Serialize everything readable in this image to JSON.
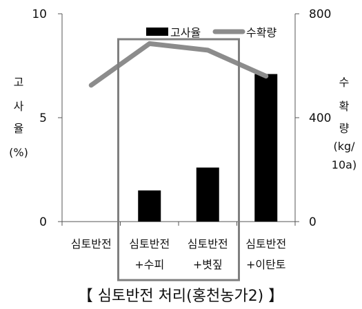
{
  "chart_data": {
    "type": "bar",
    "categories": [
      [
        "심토반전"
      ],
      [
        "심토반전",
        "+수피"
      ],
      [
        "심토반전",
        "+볏짚"
      ],
      [
        "심토반전",
        "+이탄토"
      ]
    ],
    "series": [
      {
        "name": "고사율",
        "type": "bar",
        "axis": "left",
        "values": [
          0,
          1.5,
          2.6,
          7.1
        ],
        "color": "#000000"
      },
      {
        "name": "수확량",
        "type": "line",
        "axis": "right",
        "values": [
          525,
          685,
          660,
          560
        ],
        "color": "#8c8c8c"
      }
    ],
    "y_left": {
      "label_lines": [
        "고",
        "사",
        "율",
        "(%)"
      ],
      "ylim": [
        0,
        10
      ],
      "ticks": [
        "0",
        "5",
        "10"
      ]
    },
    "y_right": {
      "label_lines": [
        "수",
        "확",
        "량",
        "(kg/",
        "10a)"
      ],
      "ylim": [
        0,
        800
      ],
      "ticks": [
        "0",
        "400",
        "800"
      ]
    },
    "legend": {
      "position": "top-right",
      "items": [
        "고사율",
        "수확량"
      ]
    },
    "caption": "【 심토반전  처리(홍천농가2) 】",
    "highlight": {
      "categories": [
        1,
        2
      ],
      "color": "#7f7f7f"
    },
    "grid": false
  }
}
